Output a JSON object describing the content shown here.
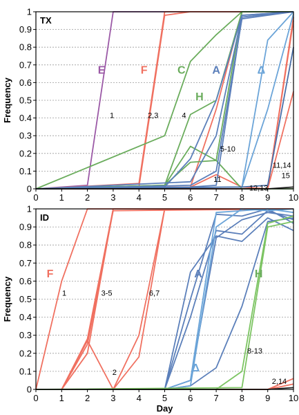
{
  "chart_data": [
    {
      "type": "line",
      "panel_label": "TX",
      "ylabel": "Frequency",
      "xlabel": "",
      "xlim": [
        0,
        10
      ],
      "ylim": [
        0,
        1
      ],
      "x_ticks": [
        "0",
        "1",
        "2",
        "3",
        "4",
        "5",
        "6",
        "7",
        "8",
        "9",
        "10"
      ],
      "y_ticks": [
        "0",
        "0.1",
        "0.2",
        "0.3",
        "0.4",
        "0.5",
        "0.6",
        "0.7",
        "0.8",
        "0.9",
        "1"
      ],
      "grid": true,
      "series": [
        {
          "color": "#9b59a6",
          "points": [
            [
              0,
              0
            ],
            [
              2,
              0.02
            ],
            [
              3,
              1
            ],
            [
              10,
              1
            ]
          ]
        },
        {
          "color": "#f07060",
          "points": [
            [
              0,
              0
            ],
            [
              4,
              0.01
            ],
            [
              5,
              0.98
            ],
            [
              6,
              1
            ],
            [
              10,
              1
            ]
          ]
        },
        {
          "color": "#f07060",
          "points": [
            [
              0,
              0
            ],
            [
              4,
              0.03
            ],
            [
              5,
              1
            ],
            [
              10,
              1
            ]
          ]
        },
        {
          "color": "#f07060",
          "points": [
            [
              0,
              0
            ],
            [
              6,
              0.01
            ],
            [
              7,
              0.45
            ],
            [
              8,
              1
            ],
            [
              10,
              1
            ]
          ]
        },
        {
          "color": "#f07060",
          "points": [
            [
              0,
              0
            ],
            [
              6,
              0.01
            ],
            [
              7,
              0.08
            ],
            [
              8,
              0.01
            ],
            [
              9,
              0
            ],
            [
              10,
              0.97
            ]
          ]
        },
        {
          "color": "#f07060",
          "points": [
            [
              0,
              0
            ],
            [
              9,
              0
            ],
            [
              10,
              0.95
            ]
          ]
        },
        {
          "color": "#f07060",
          "points": [
            [
              0,
              0
            ],
            [
              9,
              0
            ],
            [
              10,
              0.55
            ]
          ]
        },
        {
          "color": "#6aac5c",
          "points": [
            [
              0,
              0
            ],
            [
              5,
              0.3
            ],
            [
              6,
              0.72
            ],
            [
              7,
              0.87
            ],
            [
              8,
              1
            ],
            [
              10,
              1
            ]
          ]
        },
        {
          "color": "#6aac5c",
          "points": [
            [
              0,
              0
            ],
            [
              5,
              0.02
            ],
            [
              6,
              0.42
            ],
            [
              7,
              0.5
            ],
            [
              8,
              1
            ],
            [
              10,
              1
            ]
          ]
        },
        {
          "color": "#6aac5c",
          "points": [
            [
              0,
              0
            ],
            [
              5,
              0.02
            ],
            [
              6,
              0.24
            ],
            [
              7,
              0.16
            ],
            [
              8,
              0
            ],
            [
              10,
              0
            ]
          ]
        },
        {
          "color": "#6aac5c",
          "points": [
            [
              0,
              0
            ],
            [
              5,
              0.02
            ],
            [
              6,
              0.15
            ],
            [
              7,
              0.16
            ],
            [
              8,
              1
            ],
            [
              10,
              1
            ]
          ]
        },
        {
          "color": "#5b7fba",
          "points": [
            [
              0,
              0
            ],
            [
              5,
              0.01
            ],
            [
              6,
              0.17
            ],
            [
              7,
              0.5
            ],
            [
              8,
              0.98
            ],
            [
              10,
              1
            ]
          ]
        },
        {
          "color": "#5b7fba",
          "points": [
            [
              0,
              0
            ],
            [
              6,
              0.04
            ],
            [
              7,
              0.3
            ],
            [
              8,
              0.98
            ],
            [
              10,
              1
            ]
          ]
        },
        {
          "color": "#5b7fba",
          "points": [
            [
              0,
              0
            ],
            [
              6,
              0.02
            ],
            [
              7,
              0.1
            ],
            [
              8,
              0.96
            ],
            [
              10,
              1
            ]
          ]
        },
        {
          "color": "#5b7fba",
          "points": [
            [
              0,
              0
            ],
            [
              6,
              0.01
            ],
            [
              7,
              0.02
            ],
            [
              8,
              0.97
            ],
            [
              10,
              1
            ]
          ]
        },
        {
          "color": "#6ba4d8",
          "points": [
            [
              0,
              0
            ],
            [
              8,
              0.01
            ],
            [
              9,
              0.84
            ],
            [
              10,
              1
            ]
          ]
        },
        {
          "color": "#6ba4d8",
          "points": [
            [
              0,
              0
            ],
            [
              8,
              0.01
            ],
            [
              9,
              0.45
            ],
            [
              10,
              0.99
            ]
          ]
        },
        {
          "color": "#4a6fa8",
          "points": [
            [
              0,
              0
            ],
            [
              8,
              0.01
            ],
            [
              9,
              0.02
            ],
            [
              10,
              0.8
            ]
          ]
        },
        {
          "color": "#222222",
          "points": [
            [
              0,
              0
            ],
            [
              9,
              0
            ],
            [
              10,
              0.01
            ]
          ]
        }
      ],
      "annotations": [
        {
          "text": "E",
          "x": 2.55,
          "y": 0.65,
          "color": "#9b59a6",
          "kind": "letter"
        },
        {
          "text": "F",
          "x": 4.2,
          "y": 0.65,
          "color": "#f07060",
          "kind": "letter"
        },
        {
          "text": "C",
          "x": 5.65,
          "y": 0.65,
          "color": "#6aac5c",
          "kind": "letter"
        },
        {
          "text": "A",
          "x": 7.0,
          "y": 0.65,
          "color": "#5b7fba",
          "kind": "letter"
        },
        {
          "text": "H",
          "x": 6.35,
          "y": 0.5,
          "color": "#6aac5c",
          "kind": "letter"
        },
        {
          "text": "Δ",
          "x": 8.75,
          "y": 0.65,
          "color": "#6ba4d8",
          "kind": "letter"
        },
        {
          "text": "1",
          "x": 2.95,
          "y": 0.4,
          "color": "#000",
          "kind": "num"
        },
        {
          "text": "2,3",
          "x": 4.55,
          "y": 0.4,
          "color": "#000",
          "kind": "num"
        },
        {
          "text": "4",
          "x": 5.75,
          "y": 0.4,
          "color": "#000",
          "kind": "num"
        },
        {
          "text": "5-10",
          "x": 7.45,
          "y": 0.21,
          "color": "#000",
          "kind": "num"
        },
        {
          "text": "11",
          "x": 7.05,
          "y": 0.04,
          "color": "#000",
          "kind": "num"
        },
        {
          "text": "12,13",
          "x": 8.65,
          "y": -0.01,
          "color": "#000",
          "kind": "num"
        },
        {
          "text": "11,14",
          "x": 9.55,
          "y": 0.12,
          "color": "#000",
          "kind": "num"
        },
        {
          "text": "15",
          "x": 9.7,
          "y": 0.06,
          "color": "#000",
          "kind": "num"
        }
      ]
    },
    {
      "type": "line",
      "panel_label": "ID",
      "ylabel": "Frequency",
      "xlabel": "Day",
      "xlim": [
        0,
        10
      ],
      "ylim": [
        0,
        1
      ],
      "x_ticks": [
        "0",
        "1",
        "2",
        "3",
        "4",
        "5",
        "6",
        "7",
        "8",
        "9",
        "10"
      ],
      "y_ticks": [
        "0",
        "0.1",
        "0.2",
        "0.3",
        "0.4",
        "0.5",
        "0.6",
        "0.7",
        "0.8",
        "0.9",
        "1"
      ],
      "grid": true,
      "series": [
        {
          "color": "#f07060",
          "points": [
            [
              0,
              0
            ],
            [
              1,
              0.6
            ],
            [
              2,
              1
            ],
            [
              10,
              1
            ]
          ]
        },
        {
          "color": "#f07060",
          "points": [
            [
              0,
              0
            ],
            [
              1,
              0
            ],
            [
              2,
              0.28
            ],
            [
              3,
              1
            ],
            [
              10,
              1
            ]
          ]
        },
        {
          "color": "#f07060",
          "points": [
            [
              0,
              0
            ],
            [
              1,
              0
            ],
            [
              2,
              0.25
            ],
            [
              3,
              0.99
            ],
            [
              10,
              1
            ]
          ]
        },
        {
          "color": "#f07060",
          "points": [
            [
              0,
              0
            ],
            [
              1,
              0
            ],
            [
              2,
              0.2
            ],
            [
              3,
              1
            ],
            [
              10,
              1
            ]
          ]
        },
        {
          "color": "#f07060",
          "points": [
            [
              0,
              0
            ],
            [
              1,
              0
            ],
            [
              2,
              0.27
            ],
            [
              3,
              0
            ],
            [
              4,
              0.3
            ],
            [
              5,
              1
            ],
            [
              10,
              1
            ]
          ]
        },
        {
          "color": "#f07060",
          "points": [
            [
              0,
              0
            ],
            [
              3,
              0
            ],
            [
              4,
              0.18
            ],
            [
              5,
              1
            ],
            [
              10,
              1
            ]
          ]
        },
        {
          "color": "#f07060",
          "points": [
            [
              0,
              0
            ],
            [
              9,
              0
            ],
            [
              10,
              0.06
            ]
          ]
        },
        {
          "color": "#f07060",
          "points": [
            [
              0,
              0
            ],
            [
              9,
              0
            ],
            [
              10,
              0.03
            ]
          ]
        },
        {
          "color": "#5b7fba",
          "points": [
            [
              0,
              0
            ],
            [
              5,
              0
            ],
            [
              6,
              0.65
            ],
            [
              7,
              0.85
            ],
            [
              8,
              0.82
            ],
            [
              9,
              0.95
            ],
            [
              10,
              0.88
            ]
          ]
        },
        {
          "color": "#5b7fba",
          "points": [
            [
              0,
              0
            ],
            [
              5,
              0
            ],
            [
              6,
              0.5
            ],
            [
              7,
              0.97
            ],
            [
              8,
              0.96
            ],
            [
              9,
              1
            ],
            [
              10,
              0.92
            ]
          ]
        },
        {
          "color": "#5b7fba",
          "points": [
            [
              0,
              0
            ],
            [
              5,
              0
            ],
            [
              6,
              0.4
            ],
            [
              7,
              0.88
            ],
            [
              8,
              0.86
            ],
            [
              9,
              0.99
            ],
            [
              10,
              0.94
            ]
          ]
        },
        {
          "color": "#5b7fba",
          "points": [
            [
              0,
              0
            ],
            [
              5,
              0
            ],
            [
              6,
              0.05
            ],
            [
              7,
              0.84
            ],
            [
              8,
              0.94
            ],
            [
              9,
              0.98
            ],
            [
              10,
              0.96
            ]
          ]
        },
        {
          "color": "#5b7fba",
          "points": [
            [
              0,
              0
            ],
            [
              5,
              0
            ],
            [
              6,
              0.02
            ],
            [
              7,
              0.12
            ],
            [
              8,
              0.46
            ],
            [
              9,
              0.93
            ],
            [
              10,
              0.95
            ]
          ]
        },
        {
          "color": "#6ba4d8",
          "points": [
            [
              0,
              0
            ],
            [
              5,
              0
            ],
            [
              6,
              0.05
            ],
            [
              7,
              0.98
            ],
            [
              8,
              0.99
            ],
            [
              9,
              1
            ],
            [
              10,
              0.98
            ]
          ]
        },
        {
          "color": "#6ba4d8",
          "points": [
            [
              0,
              0
            ],
            [
              5,
              0
            ],
            [
              6,
              0.02
            ],
            [
              7,
              0.9
            ],
            [
              8,
              1
            ],
            [
              9,
              0.99
            ],
            [
              10,
              1
            ]
          ]
        },
        {
          "color": "#7cc462",
          "points": [
            [
              0,
              0
            ],
            [
              7,
              0
            ],
            [
              8,
              0.1
            ],
            [
              9,
              0.92
            ],
            [
              10,
              0.96
            ]
          ]
        },
        {
          "color": "#7cc462",
          "points": [
            [
              0,
              0
            ],
            [
              8,
              0.01
            ],
            [
              9,
              0.9
            ],
            [
              10,
              0.93
            ]
          ]
        },
        {
          "color": "#222222",
          "points": [
            [
              0,
              0
            ],
            [
              9,
              0
            ],
            [
              10,
              0.01
            ]
          ]
        }
      ],
      "annotations": [
        {
          "text": "F",
          "x": 0.55,
          "y": 0.62,
          "color": "#f07060",
          "kind": "letter"
        },
        {
          "text": "A",
          "x": 6.3,
          "y": 0.62,
          "color": "#5b7fba",
          "kind": "letter"
        },
        {
          "text": "H",
          "x": 8.65,
          "y": 0.62,
          "color": "#6aac5c",
          "kind": "letter"
        },
        {
          "text": "Δ",
          "x": 6.2,
          "y": 0.1,
          "color": "#6ba4d8",
          "kind": "letter"
        },
        {
          "text": "1",
          "x": 1.1,
          "y": 0.52,
          "color": "#000",
          "kind": "num"
        },
        {
          "text": "3-5",
          "x": 2.75,
          "y": 0.52,
          "color": "#000",
          "kind": "num"
        },
        {
          "text": "6,7",
          "x": 4.6,
          "y": 0.52,
          "color": "#000",
          "kind": "num"
        },
        {
          "text": "2",
          "x": 3.05,
          "y": 0.08,
          "color": "#000",
          "kind": "num"
        },
        {
          "text": "8-13",
          "x": 8.5,
          "y": 0.2,
          "color": "#000",
          "kind": "num"
        },
        {
          "text": "2,14",
          "x": 9.45,
          "y": 0.03,
          "color": "#000",
          "kind": "num"
        }
      ]
    }
  ]
}
